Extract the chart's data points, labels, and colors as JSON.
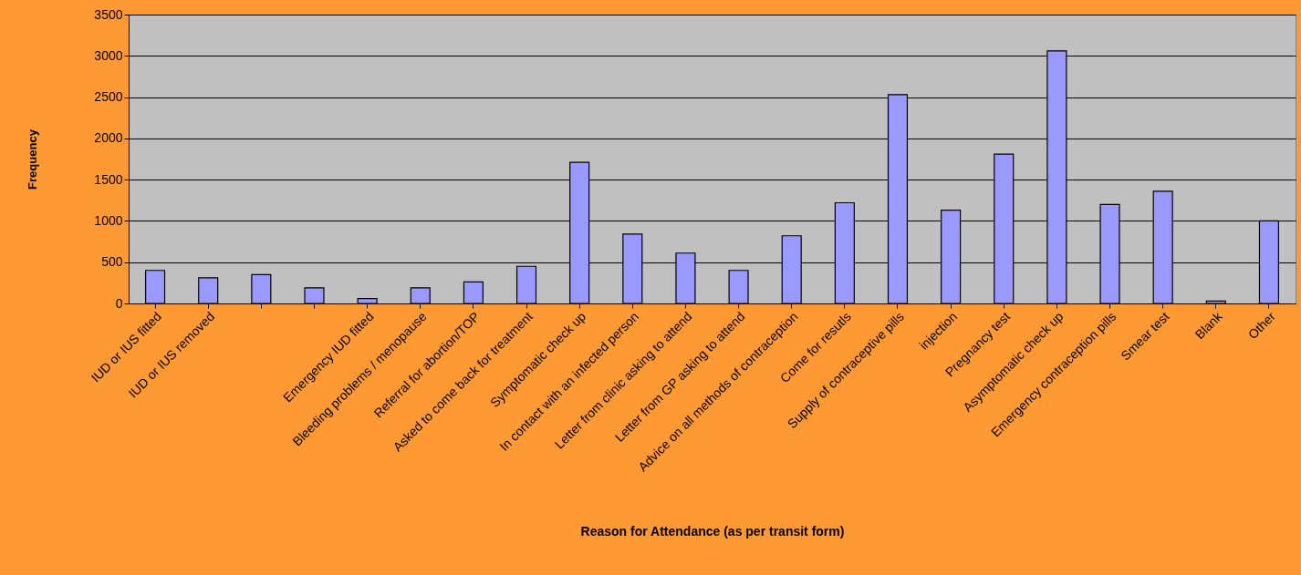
{
  "chart_data": {
    "type": "bar",
    "xlabel": "Reason for Attendance (as per transit form)",
    "ylabel": "Frequency",
    "categories": [
      "IUD or IUS fitted",
      "IUD or IUS removed",
      null,
      null,
      "Emergency IUD fitted",
      "Bleeding problems / menopause",
      "Referral for abortion/TOP",
      "Asked to come back for treatment",
      "Symptomatic check up",
      "In contact with an infected person",
      "Letter from clinic asking to attend",
      "Letter from GP asking to attend",
      "Advice on all methods of contraception",
      "Come for resutls",
      "Supply of contraceptive pills",
      "injection",
      "Pregnancy test",
      "Asymptomatic check up",
      "Emergency contraception pills",
      "Smear test",
      "Blank",
      "Other"
    ],
    "values": [
      400,
      310,
      350,
      190,
      60,
      190,
      260,
      450,
      1710,
      840,
      610,
      400,
      820,
      1220,
      2530,
      1130,
      1810,
      3060,
      1200,
      1360,
      30,
      1000
    ],
    "color": "#9999ff",
    "ylim": [
      0,
      3500
    ],
    "yticks": [
      0,
      500,
      1000,
      1500,
      2000,
      2500,
      3000,
      3500
    ],
    "grid": "y"
  }
}
